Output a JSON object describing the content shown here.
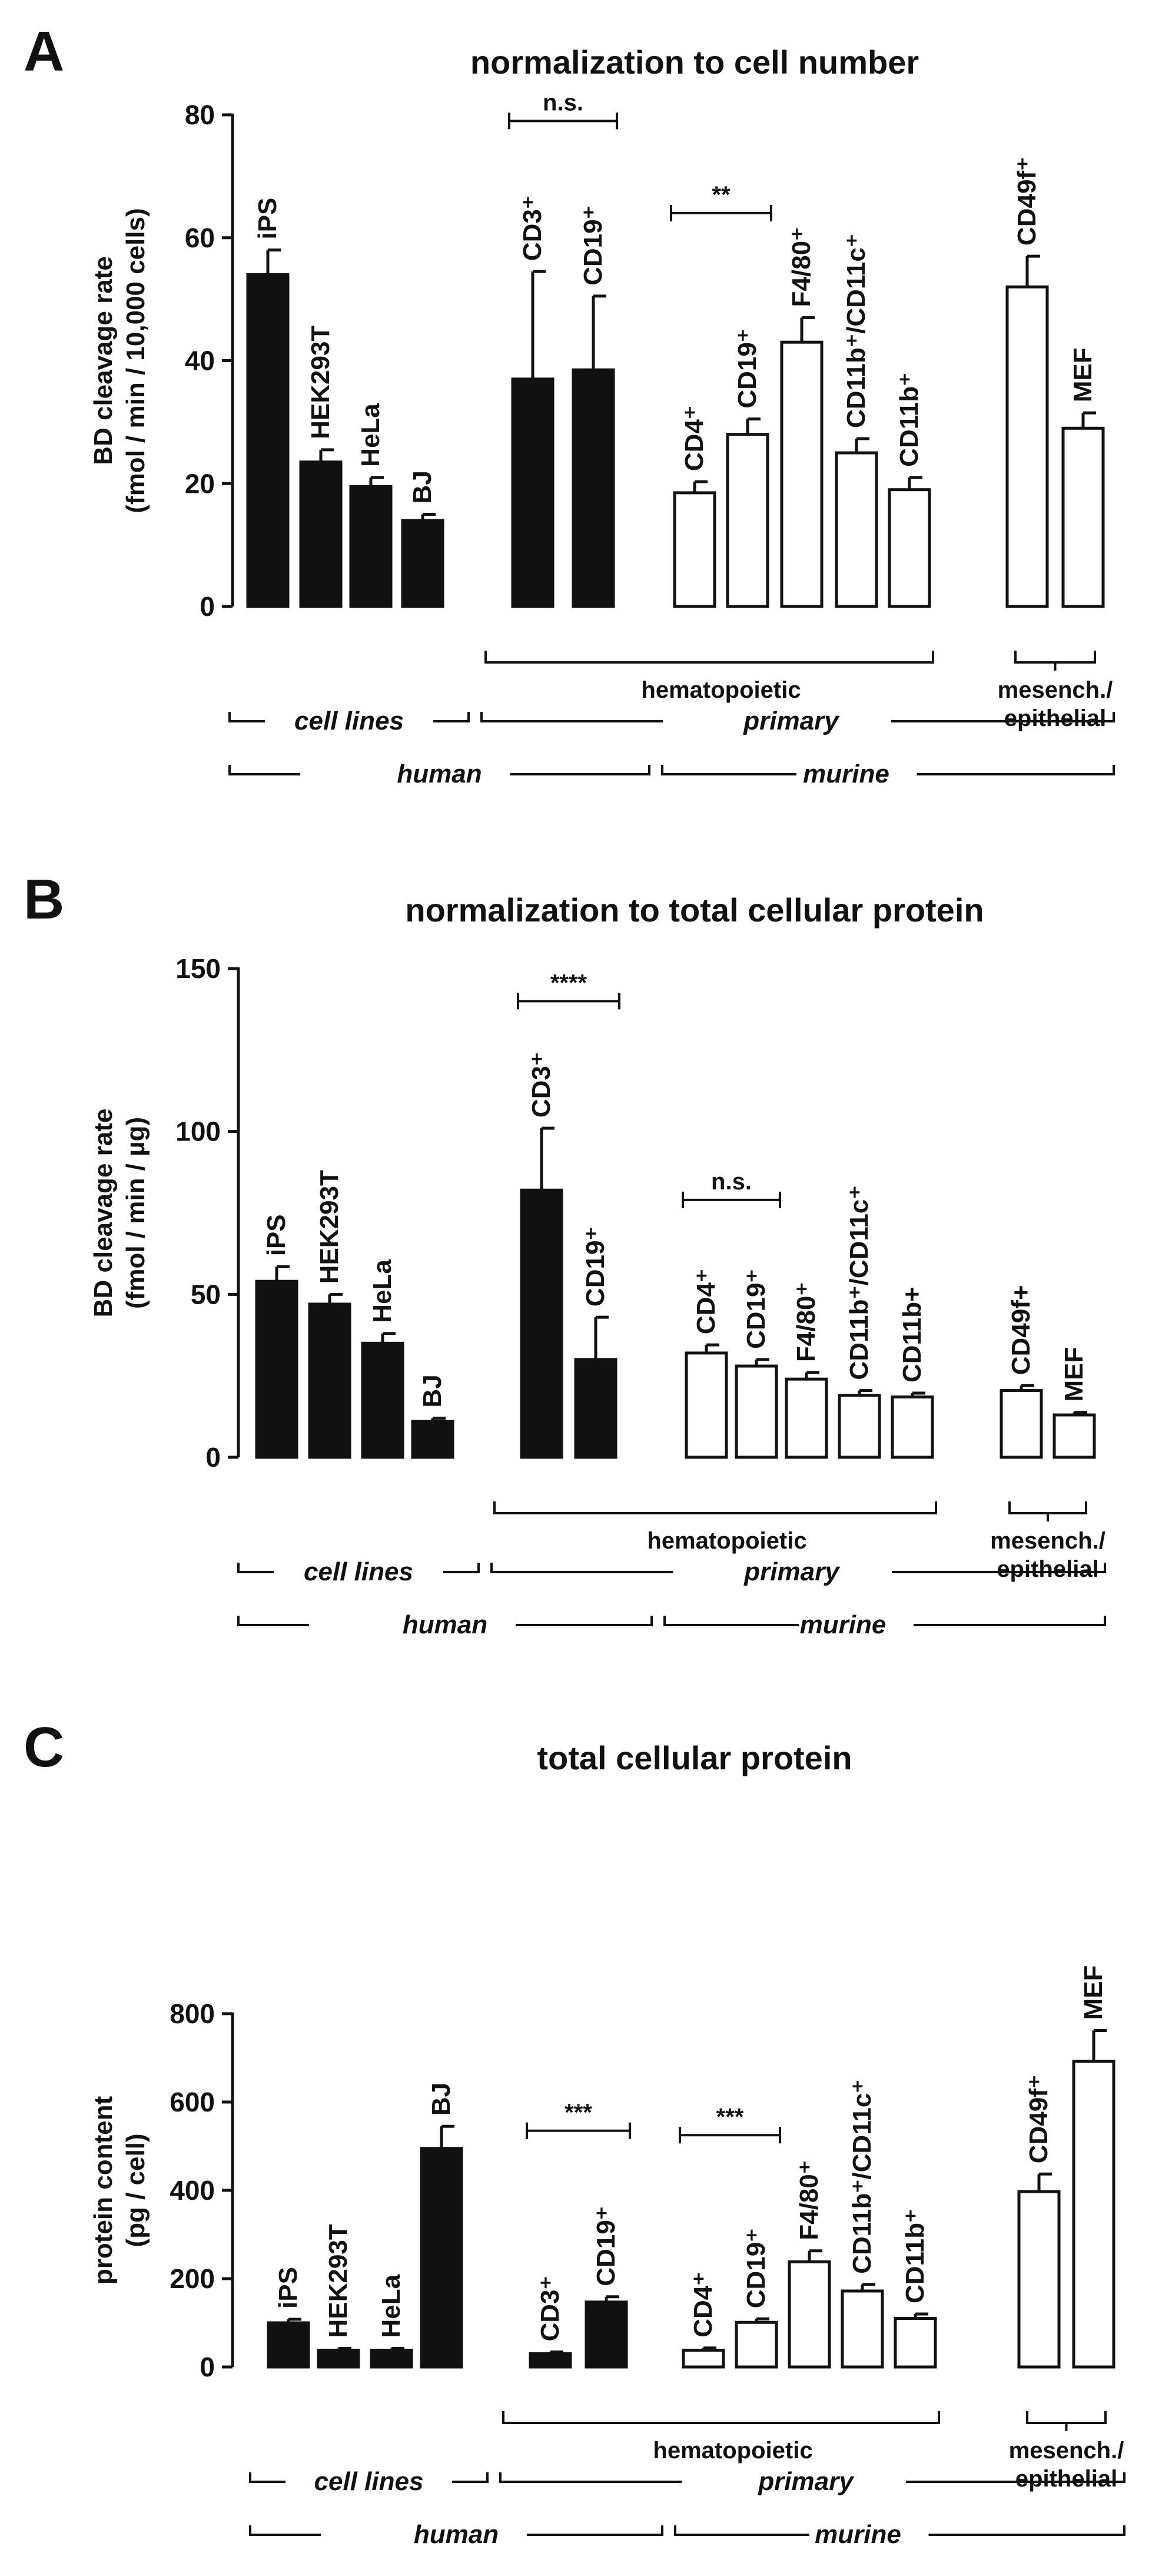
{
  "figure_title": "",
  "colors": {
    "filled": "#111111",
    "open": "#ffffff",
    "stroke": "#111111"
  },
  "chart_data": [
    {
      "type": "bar",
      "panel_letter": "A",
      "title": "normalization to cell number",
      "ylabel_line1": "BD cleavage rate",
      "ylabel_line2": "(fmol / min / 10,000 cells)",
      "ylim": [
        0,
        80
      ],
      "yticks": [
        "0",
        "20",
        "40",
        "60",
        "80"
      ],
      "categories": [
        "iPS",
        "HEK293T",
        "HeLa",
        "BJ",
        "CD3⁺",
        "CD19⁺",
        "CD4⁺",
        "CD19⁺",
        "F4/80⁺",
        "CD11b⁺/CD11c⁺",
        "CD11b⁺",
        "CD49f⁺",
        "MEF"
      ],
      "values": [
        54,
        23.5,
        19.5,
        14,
        37,
        38.5,
        18.5,
        28,
        43,
        25,
        19,
        52,
        29
      ],
      "errors": [
        4,
        2,
        1.5,
        1,
        17.5,
        12,
        1.8,
        2.5,
        4,
        2.3,
        2,
        5,
        2.5
      ],
      "fill": [
        "filled",
        "filled",
        "filled",
        "filled",
        "filled",
        "filled",
        "open",
        "open",
        "open",
        "open",
        "open",
        "open",
        "open"
      ],
      "significance": [
        {
          "from": 4,
          "to": 5,
          "label": "n.s.",
          "y": 79
        },
        {
          "from": 6,
          "to": 7,
          "label": "**",
          "y": 64
        }
      ],
      "groups": {
        "hematopoietic": "hematopoietic",
        "mesench_line1": "mesench./",
        "mesench_line2": "epithelial",
        "cell_lines": "cell lines",
        "primary": "primary",
        "human": "human",
        "murine": "murine"
      }
    },
    {
      "type": "bar",
      "panel_letter": "B",
      "title": "normalization to total cellular protein",
      "ylabel_line1": "BD cleavage rate",
      "ylabel_line2": "(fmol / min / µg)",
      "ylim": [
        0,
        150
      ],
      "yticks": [
        "0",
        "50",
        "100",
        "150"
      ],
      "categories": [
        "iPS",
        "HEK293T",
        "HeLa",
        "BJ",
        "CD3⁺",
        "CD19⁺",
        "CD4⁺",
        "CD19⁺",
        "F4/80⁺",
        "CD11b⁺/CD11c⁺",
        "CD11b+",
        "CD49f+",
        "MEF"
      ],
      "values": [
        54,
        47,
        35,
        11,
        82,
        30,
        32,
        28,
        24,
        19,
        18.5,
        20.5,
        13
      ],
      "errors": [
        4.5,
        3,
        3,
        1,
        19,
        13,
        2.5,
        2,
        2,
        1.5,
        1.2,
        1.5,
        0.8
      ],
      "fill": [
        "filled",
        "filled",
        "filled",
        "filled",
        "filled",
        "filled",
        "open",
        "open",
        "open",
        "open",
        "open",
        "open",
        "open"
      ],
      "significance": [
        {
          "from": 4,
          "to": 5,
          "label": "****",
          "y": 140
        },
        {
          "from": 6,
          "to": 7,
          "label": "n.s.",
          "y": 79
        }
      ],
      "groups": {
        "hematopoietic": "hematopoietic",
        "mesench_line1": "mesench./",
        "mesench_line2": "epithelial",
        "cell_lines": "cell lines",
        "primary": "primary",
        "human": "human",
        "murine": "murine"
      }
    },
    {
      "type": "bar",
      "panel_letter": "C",
      "title": "total cellular protein",
      "ylabel_line1": "protein content",
      "ylabel_line2": "(pg / cell)",
      "ylim": [
        0,
        800
      ],
      "yticks": [
        "0",
        "200",
        "400",
        "600",
        "800"
      ],
      "categories": [
        "iPS",
        "HEK293T",
        "HeLa",
        "BJ",
        "CD3⁺",
        "CD19⁺",
        "CD4⁺",
        "CD19⁺",
        "F4/80⁺",
        "CD11b⁺/CD11c⁺",
        "CD11b⁺",
        "CD49f⁺",
        "MEF"
      ],
      "values": [
        100,
        38,
        38,
        495,
        30,
        147,
        38,
        101,
        238,
        172,
        110,
        397,
        692
      ],
      "errors": [
        8,
        4,
        4,
        50,
        4,
        12,
        5,
        8,
        25,
        15,
        10,
        40,
        70
      ],
      "fill": [
        "filled",
        "filled",
        "filled",
        "filled",
        "filled",
        "filled",
        "open",
        "open",
        "open",
        "open",
        "open",
        "open",
        "open"
      ],
      "significance": [
        {
          "from": 4,
          "to": 5,
          "label": "***",
          "y": 535
        },
        {
          "from": 6,
          "to": 7,
          "label": "***",
          "y": 525
        }
      ],
      "groups": {
        "hematopoietic": "hematopoietic",
        "mesench_line1": "mesench./",
        "mesench_line2": "epithelial",
        "cell_lines": "cell lines",
        "primary": "primary",
        "human": "human",
        "murine": "murine"
      }
    }
  ]
}
